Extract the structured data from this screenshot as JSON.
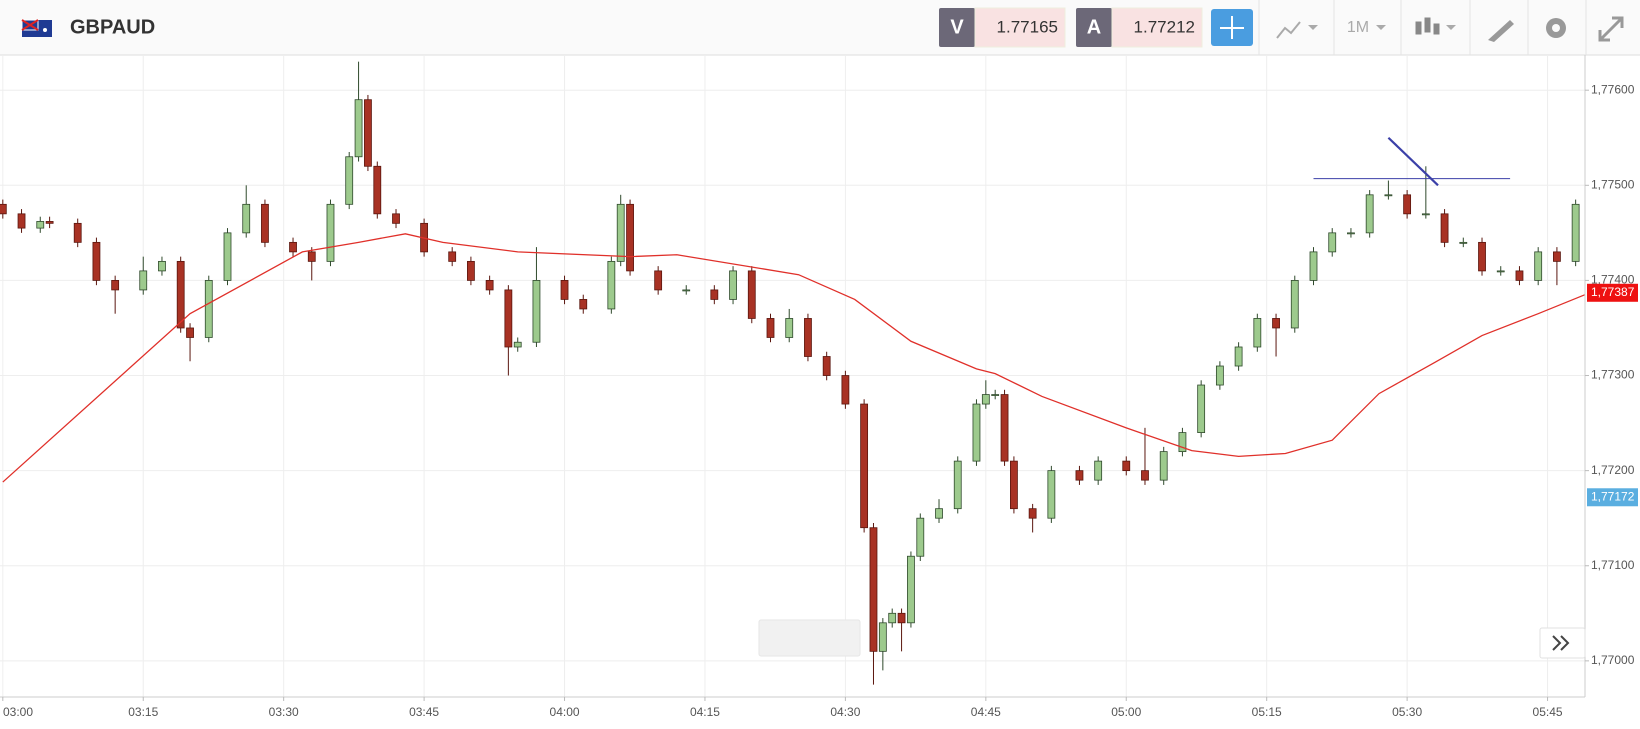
{
  "header": {
    "symbol": "GBPAUD",
    "bid_label": "V",
    "bid": "1.77165",
    "ask_label": "A",
    "ask": "1.77212",
    "timeframe": "1M"
  },
  "chart_data": {
    "type": "candlestick",
    "x": [
      0,
      2,
      4,
      5,
      8,
      10,
      12,
      15,
      17,
      19,
      20,
      22,
      24,
      26,
      28,
      31,
      33,
      35,
      37,
      38,
      39,
      40,
      42,
      45,
      48,
      50,
      52,
      54,
      55,
      57,
      60,
      62,
      65,
      66,
      67,
      70,
      73,
      76,
      78,
      80,
      82,
      84,
      86,
      88,
      90,
      92,
      93,
      94,
      95,
      96,
      97,
      98,
      100,
      102,
      104,
      105,
      106,
      107,
      108,
      110,
      112,
      115,
      117,
      120,
      122,
      124,
      126,
      128,
      130,
      132,
      134,
      136,
      138,
      140,
      142,
      144,
      146,
      148,
      150,
      152,
      154,
      156,
      158,
      160,
      162,
      164,
      166,
      168
    ],
    "open": [
      1.7748,
      1.7747,
      1.77455,
      1.77462,
      1.7746,
      1.7744,
      1.774,
      1.7739,
      1.7741,
      1.7742,
      1.7735,
      1.7734,
      1.774,
      1.7745,
      1.7748,
      1.7744,
      1.7743,
      1.7742,
      1.7748,
      1.7753,
      1.7759,
      1.7752,
      1.7747,
      1.7746,
      1.7743,
      1.7742,
      1.774,
      1.7739,
      1.7733,
      1.77335,
      1.774,
      1.7738,
      1.7737,
      1.7742,
      1.7748,
      1.7741,
      1.7739,
      1.7739,
      1.7738,
      1.7741,
      1.7736,
      1.7734,
      1.7736,
      1.7732,
      1.773,
      1.7727,
      1.7714,
      1.7701,
      1.7704,
      1.7705,
      1.7704,
      1.7711,
      1.7715,
      1.7716,
      1.7721,
      1.7727,
      1.7728,
      1.7728,
      1.7721,
      1.7716,
      1.7715,
      1.772,
      1.7719,
      1.7721,
      1.772,
      1.7719,
      1.7722,
      1.7724,
      1.7729,
      1.7731,
      1.7733,
      1.7736,
      1.7735,
      1.774,
      1.7743,
      1.7745,
      1.7745,
      1.7749,
      1.7749,
      1.7747,
      1.7747,
      1.7744,
      1.7744,
      1.7741,
      1.7741,
      1.774,
      1.7743,
      1.7742
    ],
    "high": [
      1.77485,
      1.77475,
      1.77467,
      1.77467,
      1.77465,
      1.77445,
      1.77405,
      1.77425,
      1.77425,
      1.77425,
      1.77355,
      1.77405,
      1.77455,
      1.775,
      1.77485,
      1.77445,
      1.77435,
      1.77485,
      1.77535,
      1.7763,
      1.77595,
      1.77525,
      1.77475,
      1.77465,
      1.77435,
      1.77425,
      1.77405,
      1.77395,
      1.7734,
      1.77435,
      1.77405,
      1.77385,
      1.77425,
      1.7749,
      1.77485,
      1.77415,
      1.77395,
      1.77395,
      1.77415,
      1.77415,
      1.77365,
      1.7737,
      1.77365,
      1.77325,
      1.77305,
      1.77275,
      1.77145,
      1.77045,
      1.77055,
      1.77055,
      1.77115,
      1.77155,
      1.7717,
      1.77215,
      1.77275,
      1.77295,
      1.77285,
      1.77285,
      1.77215,
      1.77165,
      1.77205,
      1.77205,
      1.77215,
      1.77215,
      1.77245,
      1.77225,
      1.77245,
      1.77295,
      1.77315,
      1.77335,
      1.77365,
      1.77365,
      1.77405,
      1.77435,
      1.77455,
      1.77455,
      1.77495,
      1.77505,
      1.77495,
      1.7752,
      1.77475,
      1.77445,
      1.77445,
      1.77415,
      1.77415,
      1.77435,
      1.77435,
      1.77485
    ],
    "low": [
      1.77465,
      1.7745,
      1.7745,
      1.77455,
      1.77435,
      1.77395,
      1.77365,
      1.77385,
      1.77405,
      1.77345,
      1.77315,
      1.77335,
      1.77395,
      1.77445,
      1.77435,
      1.77425,
      1.774,
      1.77415,
      1.77475,
      1.77525,
      1.77515,
      1.77465,
      1.77455,
      1.77425,
      1.77415,
      1.77395,
      1.77385,
      1.773,
      1.77325,
      1.7733,
      1.77375,
      1.77365,
      1.77365,
      1.77415,
      1.77405,
      1.77385,
      1.77385,
      1.77375,
      1.77375,
      1.77355,
      1.77335,
      1.77335,
      1.77315,
      1.77295,
      1.77265,
      1.77135,
      1.76975,
      1.7699,
      1.77035,
      1.7701,
      1.77035,
      1.77105,
      1.77145,
      1.77155,
      1.77205,
      1.77265,
      1.77275,
      1.77205,
      1.77155,
      1.77135,
      1.77145,
      1.77185,
      1.77185,
      1.77195,
      1.77185,
      1.77185,
      1.77215,
      1.77235,
      1.77285,
      1.77305,
      1.77325,
      1.7732,
      1.77345,
      1.77395,
      1.77425,
      1.77445,
      1.77445,
      1.77485,
      1.77465,
      1.77465,
      1.77435,
      1.77435,
      1.77405,
      1.77405,
      1.77395,
      1.77395,
      1.77395,
      1.77415
    ],
    "close": [
      1.7747,
      1.77455,
      1.77462,
      1.7746,
      1.7744,
      1.774,
      1.7739,
      1.7741,
      1.7742,
      1.7735,
      1.7734,
      1.774,
      1.7745,
      1.7748,
      1.7744,
      1.7743,
      1.7742,
      1.7748,
      1.7753,
      1.7759,
      1.7752,
      1.7747,
      1.7746,
      1.7743,
      1.7742,
      1.774,
      1.7739,
      1.7733,
      1.77335,
      1.774,
      1.7738,
      1.7737,
      1.7742,
      1.7748,
      1.7741,
      1.7739,
      1.7739,
      1.7738,
      1.7741,
      1.7736,
      1.7734,
      1.7736,
      1.7732,
      1.773,
      1.7727,
      1.7714,
      1.7701,
      1.7704,
      1.7705,
      1.7704,
      1.7711,
      1.7715,
      1.7716,
      1.7721,
      1.7727,
      1.7728,
      1.7728,
      1.7721,
      1.7716,
      1.7715,
      1.772,
      1.7719,
      1.7721,
      1.772,
      1.7719,
      1.7722,
      1.7724,
      1.7729,
      1.7731,
      1.7733,
      1.7736,
      1.7735,
      1.774,
      1.7743,
      1.7745,
      1.7745,
      1.7749,
      1.7749,
      1.7747,
      1.7747,
      1.7744,
      1.7744,
      1.7741,
      1.7741,
      1.774,
      1.7743,
      1.7742,
      1.7748
    ],
    "up_color": "#9dca8d",
    "down_color": "#a83224",
    "ma": {
      "color": "#e0302a",
      "x": [
        0,
        20,
        32,
        38,
        43,
        47,
        55,
        67,
        72,
        85,
        91,
        97,
        104,
        106,
        111,
        120,
        127,
        132,
        137,
        142,
        147,
        153,
        158,
        164,
        169
      ],
      "values": [
        1.77188,
        1.77365,
        1.7743,
        1.7744,
        1.77449,
        1.7744,
        1.7743,
        1.77425,
        1.77427,
        1.77406,
        1.7738,
        1.77336,
        1.77307,
        1.77302,
        1.77278,
        1.77245,
        1.77221,
        1.77215,
        1.77218,
        1.77232,
        1.77281,
        1.77314,
        1.77342,
        1.77365,
        1.77385
      ]
    },
    "drawings": {
      "color": "#3b40a8",
      "hline": {
        "x": [
          140,
          161
        ],
        "value": 1.77507
      },
      "trendline": {
        "x": [
          148,
          153.3
        ],
        "values": [
          1.7755,
          1.775
        ]
      }
    },
    "xlim": [
      -0.3,
      169
    ],
    "ylim": [
      1.76962,
      1.77637
    ],
    "xticks": [
      {
        "value": 0,
        "label": "03:00"
      },
      {
        "value": 15,
        "label": "03:15"
      },
      {
        "value": 30,
        "label": "03:30"
      },
      {
        "value": 45,
        "label": "03:45"
      },
      {
        "value": 60,
        "label": "04:00"
      },
      {
        "value": 75,
        "label": "04:15"
      },
      {
        "value": 90,
        "label": "04:30"
      },
      {
        "value": 105,
        "label": "04:45"
      },
      {
        "value": 120,
        "label": "05:00"
      },
      {
        "value": 135,
        "label": "05:15"
      },
      {
        "value": 150,
        "label": "05:30"
      },
      {
        "value": 165,
        "label": "05:45"
      }
    ],
    "yticks": [
      {
        "value": 1.776,
        "label": "1,77600"
      },
      {
        "value": 1.775,
        "label": "1,77500"
      },
      {
        "value": 1.774,
        "label": "1,77400"
      },
      {
        "value": 1.773,
        "label": "1,77300"
      },
      {
        "value": 1.772,
        "label": "1,77200"
      },
      {
        "value": 1.771,
        "label": "1,77100"
      },
      {
        "value": 1.77,
        "label": "1,77000"
      }
    ],
    "price_labels": [
      {
        "value": 1.77387,
        "label": "1,77387",
        "color": "#ee1111"
      },
      {
        "value": 1.77172,
        "label": "1,77172",
        "color": "#5aaee0"
      }
    ],
    "grid": true
  }
}
